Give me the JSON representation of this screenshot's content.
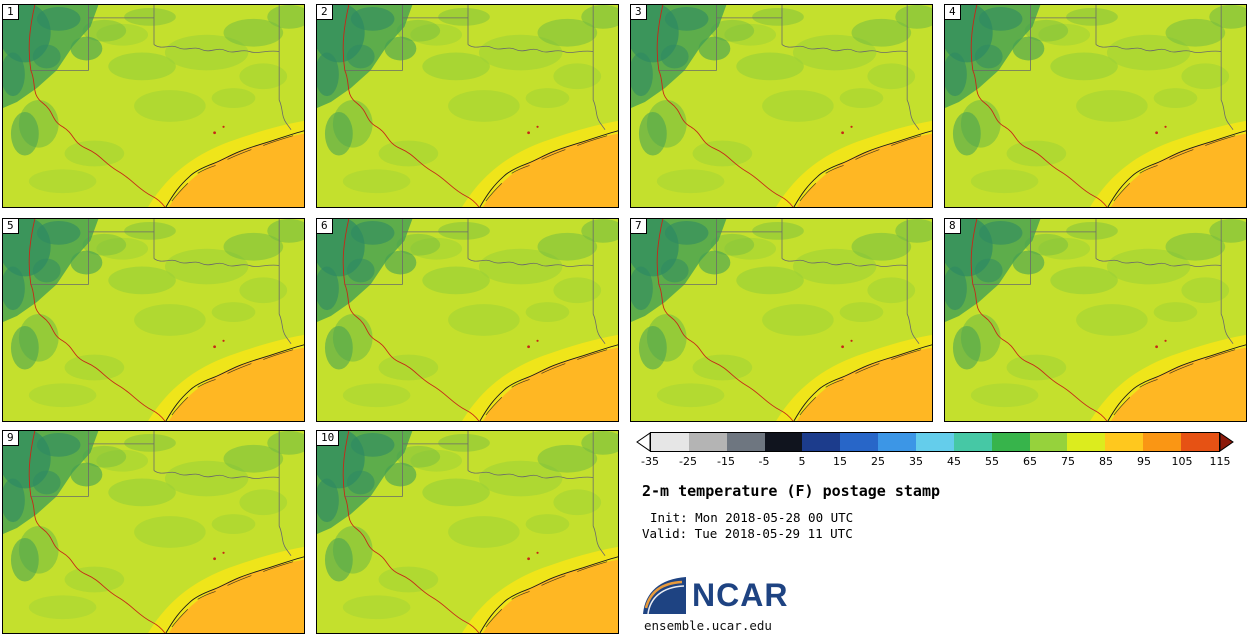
{
  "panels": [
    {
      "label": "1"
    },
    {
      "label": "2"
    },
    {
      "label": "3"
    },
    {
      "label": "4"
    },
    {
      "label": "5"
    },
    {
      "label": "6"
    },
    {
      "label": "7"
    },
    {
      "label": "8"
    },
    {
      "label": "9"
    },
    {
      "label": "10"
    }
  ],
  "colorbar": {
    "ticks": [
      "-35",
      "-25",
      "-15",
      "-5",
      "5",
      "15",
      "25",
      "35",
      "45",
      "55",
      "65",
      "75",
      "85",
      "95",
      "105",
      "115"
    ],
    "segment_colors": [
      "#e6e6e6",
      "#b4b4b4",
      "#6e7680",
      "#10141e",
      "#1c3c8c",
      "#2866c8",
      "#3c96e6",
      "#64cdeb",
      "#46c8a5",
      "#37b44b",
      "#96d23c",
      "#dcec1e",
      "#ffc81e",
      "#fa9614",
      "#e65214"
    ],
    "under_color": "#ffffff",
    "over_color": "#8c1a0a"
  },
  "title": "2-m temperature (F) postage stamp",
  "init_label": "Init: Mon 2018-05-28 00 UTC",
  "valid_label": "Valid: Tue 2018-05-29 11 UTC",
  "branding": {
    "logo_text": "NCAR",
    "site": "ensemble.ucar.edu",
    "logo_color": "#1e4382"
  },
  "map_colors": {
    "land": "#c4e02d",
    "land_mid": "#9cd136",
    "land_deep": "#76bd40",
    "mountain": "#43a053",
    "mountain_dark": "#2e8a63",
    "coast_warm": "#efe51a",
    "gulf": "#ffb723",
    "border_line": "#6a6a6a",
    "river_red": "#c62817"
  }
}
